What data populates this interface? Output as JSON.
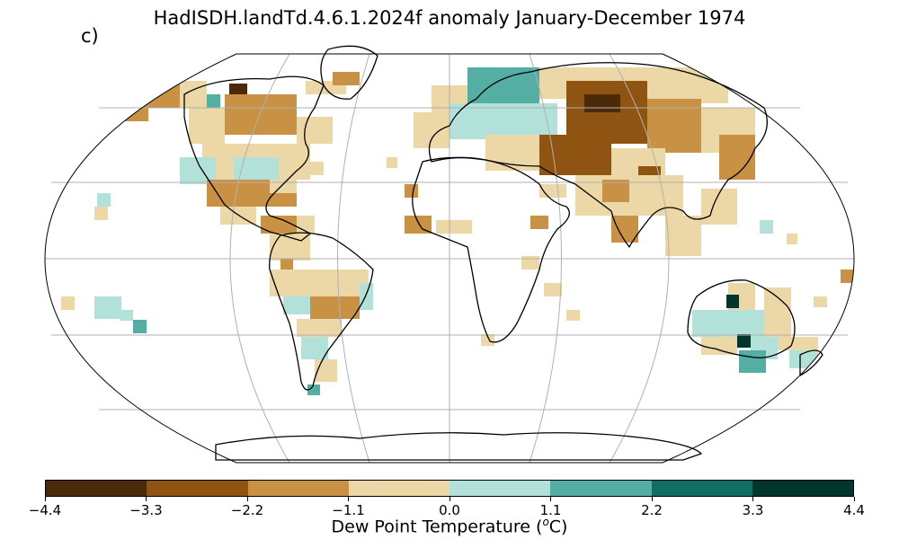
{
  "title": "HadISDH.landTd.4.6.1.2024f anomaly January-December 1974",
  "panel_label": "c)",
  "colorbar": {
    "label_html": "Dew Point Temperature (",
    "label_sup": "o",
    "label_tail": "C)",
    "ticks": [
      "−4.4",
      "−3.3",
      "−2.2",
      "−1.1",
      "0.0",
      "1.1",
      "2.2",
      "3.3",
      "4.4"
    ],
    "colors": [
      "#4b2a09",
      "#8f5412",
      "#c99144",
      "#ecd8a6",
      "#b2e1da",
      "#55aea3",
      "#0f6e62",
      "#02352d"
    ]
  },
  "projection": "Robinson",
  "grid": "on",
  "map_data": {
    "colors": {
      "c1": "#4b2a09",
      "c2": "#8f5412",
      "c3": "#c99144",
      "c4": "#ecd8a6",
      "c5": "#b2e1da",
      "c6": "#55aea3",
      "c7": "#0f6e62",
      "c8": "#02352d"
    },
    "regions": [
      {
        "name": "north-america-north",
        "fill": "c4"
      },
      {
        "name": "north-america-east",
        "fill": "c3"
      },
      {
        "name": "north-america-west",
        "fill": "c5"
      },
      {
        "name": "central-asia",
        "fill": "c2"
      },
      {
        "name": "siberia",
        "fill": "c1"
      },
      {
        "name": "europe",
        "fill": "c5"
      },
      {
        "name": "china",
        "fill": "c4"
      },
      {
        "name": "india",
        "fill": "c3"
      },
      {
        "name": "australia-north",
        "fill": "c5"
      },
      {
        "name": "australia-east",
        "fill": "c4"
      },
      {
        "name": "australia-se",
        "fill": "c8"
      },
      {
        "name": "south-america",
        "fill": "c4"
      },
      {
        "name": "greenland-coast",
        "fill": "c2"
      },
      {
        "name": "pacific-islands",
        "fill": "c5"
      }
    ]
  }
}
